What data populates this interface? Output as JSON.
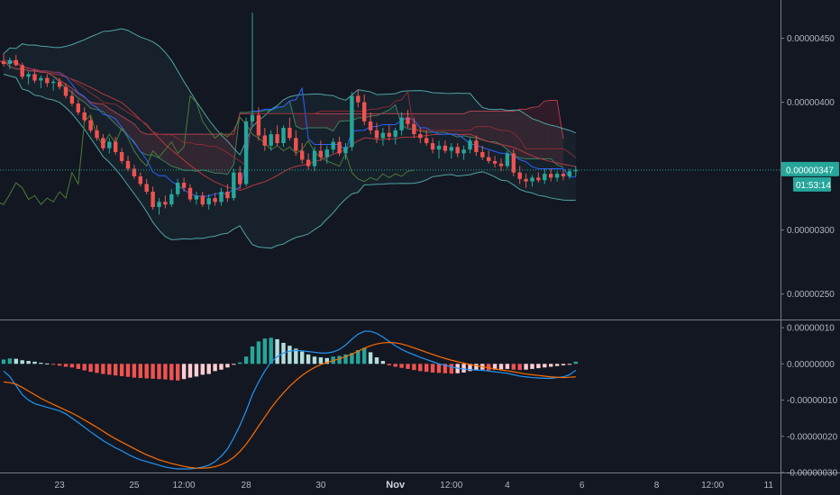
{
  "chart_data": {
    "type": "candlestick",
    "colors": {
      "up": "#26a69a",
      "down": "#ef5350",
      "bollinger": "#4fa3a5",
      "ma_blue": "#2962ff",
      "ma_red": "#b4373f",
      "lagging": "#4c7a35",
      "cloud_line": "#b23a48",
      "histogram_light_up": "#b2dfdb",
      "histogram_light_down": "#ffcdd2",
      "macd_line": "#2196f3",
      "signal_line": "#ff6d00"
    },
    "price_axis": {
      "ticks": [
        "0.00000450",
        "0.00000400",
        "0.00000300",
        "0.00000250"
      ],
      "tick_values": [
        4.5e-06,
        4e-06,
        3e-06,
        2.5e-06
      ],
      "ylim": [
        2.3e-06,
        4.8e-06
      ]
    },
    "indicator_axis": {
      "ticks": [
        "0.00000010",
        "0.00000000",
        "-0.00000010",
        "-0.00000020",
        "-0.00000030"
      ],
      "tick_values": [
        1e-07,
        0.0,
        -1e-07,
        -2e-07,
        -3e-07
      ],
      "ylim": [
        -3e-07,
        1.2e-07
      ]
    },
    "time_axis": {
      "labels": [
        {
          "text": "23",
          "bar": 9,
          "bold": false
        },
        {
          "text": "25",
          "bar": 21,
          "bold": false
        },
        {
          "text": "12:00",
          "bar": 29,
          "bold": false
        },
        {
          "text": "28",
          "bar": 39,
          "bold": false
        },
        {
          "text": "30",
          "bar": 51,
          "bold": false
        },
        {
          "text": "Nov",
          "bar": 63,
          "bold": true
        },
        {
          "text": "12:00",
          "bar": 72,
          "bold": false
        },
        {
          "text": "4",
          "bar": 81,
          "bold": false
        },
        {
          "text": "6",
          "bar": 93,
          "bold": false
        },
        {
          "text": "8",
          "bar": 105,
          "bold": false
        },
        {
          "text": "12:00",
          "bar": 114,
          "bold": false
        },
        {
          "text": "11",
          "bar": 123,
          "bold": false
        }
      ]
    },
    "current_price": {
      "value": 3.47e-06,
      "label": "0.00000347",
      "countdown": "01:53:14"
    },
    "candles": [
      [
        4.32,
        4.38,
        4.28,
        4.3
      ],
      [
        4.3,
        4.35,
        4.26,
        4.33
      ],
      [
        4.33,
        4.37,
        4.28,
        4.29
      ],
      [
        4.29,
        4.31,
        4.18,
        4.2
      ],
      [
        4.2,
        4.24,
        4.14,
        4.22
      ],
      [
        4.22,
        4.25,
        4.15,
        4.17
      ],
      [
        4.17,
        4.21,
        4.11,
        4.19
      ],
      [
        4.19,
        4.22,
        4.12,
        4.15
      ],
      [
        4.15,
        4.18,
        4.09,
        4.16
      ],
      [
        4.16,
        4.19,
        4.1,
        4.12
      ],
      [
        4.12,
        4.15,
        4.03,
        4.05
      ],
      [
        4.05,
        4.09,
        3.97,
        3.99
      ],
      [
        3.99,
        4.02,
        3.9,
        3.92
      ],
      [
        3.92,
        3.96,
        3.84,
        3.86
      ],
      [
        3.86,
        3.89,
        3.76,
        3.78
      ],
      [
        3.78,
        3.82,
        3.7,
        3.72
      ],
      [
        3.72,
        3.75,
        3.62,
        3.64
      ],
      [
        3.64,
        3.72,
        3.6,
        3.69
      ],
      [
        3.69,
        3.73,
        3.59,
        3.61
      ],
      [
        3.61,
        3.64,
        3.52,
        3.54
      ],
      [
        3.54,
        3.58,
        3.46,
        3.48
      ],
      [
        3.48,
        3.51,
        3.4,
        3.42
      ],
      [
        3.42,
        3.45,
        3.34,
        3.36
      ],
      [
        3.36,
        3.4,
        3.28,
        3.3
      ],
      [
        3.3,
        3.34,
        3.16,
        3.18
      ],
      [
        3.18,
        3.25,
        3.12,
        3.22
      ],
      [
        3.22,
        3.27,
        3.17,
        3.2
      ],
      [
        3.2,
        3.32,
        3.18,
        3.28
      ],
      [
        3.28,
        3.4,
        3.26,
        3.37
      ],
      [
        3.37,
        3.41,
        3.3,
        3.33
      ],
      [
        3.33,
        3.36,
        3.22,
        3.24
      ],
      [
        3.24,
        3.3,
        3.2,
        3.27
      ],
      [
        3.27,
        3.3,
        3.18,
        3.2
      ],
      [
        3.2,
        3.28,
        3.16,
        3.25
      ],
      [
        3.25,
        3.29,
        3.19,
        3.22
      ],
      [
        3.22,
        3.33,
        3.19,
        3.3
      ],
      [
        3.3,
        3.36,
        3.22,
        3.25
      ],
      [
        3.25,
        3.48,
        3.23,
        3.45
      ],
      [
        3.45,
        3.5,
        3.32,
        3.36
      ],
      [
        3.36,
        3.88,
        3.34,
        3.85
      ],
      [
        3.85,
        4.7,
        3.8,
        3.9
      ],
      [
        3.9,
        3.96,
        3.7,
        3.74
      ],
      [
        3.74,
        3.8,
        3.62,
        3.66
      ],
      [
        3.66,
        3.78,
        3.62,
        3.75
      ],
      [
        3.75,
        3.82,
        3.66,
        3.68
      ],
      [
        3.68,
        3.82,
        3.65,
        3.8
      ],
      [
        3.8,
        3.88,
        3.7,
        3.72
      ],
      [
        3.72,
        3.78,
        3.58,
        3.62
      ],
      [
        3.62,
        3.68,
        3.52,
        3.55
      ],
      [
        3.55,
        3.6,
        3.47,
        3.5
      ],
      [
        3.5,
        3.65,
        3.46,
        3.62
      ],
      [
        3.62,
        3.7,
        3.54,
        3.57
      ],
      [
        3.57,
        3.66,
        3.52,
        3.63
      ],
      [
        3.63,
        3.72,
        3.6,
        3.69
      ],
      [
        3.69,
        3.73,
        3.58,
        3.6
      ],
      [
        3.6,
        3.68,
        3.55,
        3.65
      ],
      [
        3.65,
        4.08,
        3.62,
        4.05
      ],
      [
        4.05,
        4.1,
        3.96,
        4.0
      ],
      [
        4.0,
        4.06,
        3.82,
        3.85
      ],
      [
        3.85,
        3.92,
        3.75,
        3.78
      ],
      [
        3.78,
        3.84,
        3.68,
        3.72
      ],
      [
        3.72,
        3.8,
        3.66,
        3.76
      ],
      [
        3.76,
        3.82,
        3.7,
        3.73
      ],
      [
        3.73,
        3.8,
        3.67,
        3.78
      ],
      [
        3.78,
        3.92,
        3.74,
        3.88
      ],
      [
        3.88,
        3.94,
        3.8,
        3.83
      ],
      [
        3.83,
        3.88,
        3.72,
        3.75
      ],
      [
        3.75,
        3.8,
        3.68,
        3.72
      ],
      [
        3.72,
        3.78,
        3.66,
        3.68
      ],
      [
        3.68,
        3.72,
        3.6,
        3.63
      ],
      [
        3.63,
        3.7,
        3.56,
        3.66
      ],
      [
        3.66,
        3.7,
        3.6,
        3.62
      ],
      [
        3.62,
        3.68,
        3.56,
        3.65
      ],
      [
        3.65,
        3.68,
        3.57,
        3.6
      ],
      [
        3.6,
        3.66,
        3.55,
        3.63
      ],
      [
        3.63,
        3.72,
        3.6,
        3.7
      ],
      [
        3.7,
        3.74,
        3.58,
        3.61
      ],
      [
        3.61,
        3.66,
        3.55,
        3.57
      ],
      [
        3.57,
        3.62,
        3.52,
        3.54
      ],
      [
        3.54,
        3.58,
        3.49,
        3.52
      ],
      [
        3.52,
        3.56,
        3.46,
        3.5
      ],
      [
        3.5,
        3.62,
        3.48,
        3.6
      ],
      [
        3.6,
        3.63,
        3.42,
        3.45
      ],
      [
        3.45,
        3.5,
        3.36,
        3.4
      ],
      [
        3.4,
        3.44,
        3.33,
        3.38
      ],
      [
        3.38,
        3.43,
        3.34,
        3.41
      ],
      [
        3.41,
        3.45,
        3.37,
        3.39
      ],
      [
        3.39,
        3.48,
        3.36,
        3.44
      ],
      [
        3.44,
        3.48,
        3.38,
        3.41
      ],
      [
        3.41,
        3.46,
        3.38,
        3.44
      ],
      [
        3.44,
        3.47,
        3.39,
        3.42
      ],
      [
        3.42,
        3.48,
        3.4,
        3.46
      ],
      [
        3.46,
        3.5,
        3.42,
        3.47
      ]
    ],
    "macd": {
      "histogram": [
        0.012,
        0.015,
        0.014,
        0.01,
        0.008,
        0.006,
        0.003,
        0.001,
        -0.002,
        -0.005,
        -0.008,
        -0.01,
        -0.014,
        -0.018,
        -0.022,
        -0.025,
        -0.028,
        -0.03,
        -0.032,
        -0.034,
        -0.036,
        -0.038,
        -0.039,
        -0.04,
        -0.041,
        -0.042,
        -0.043,
        -0.045,
        -0.046,
        -0.042,
        -0.038,
        -0.035,
        -0.03,
        -0.028,
        -0.02,
        -0.016,
        -0.01,
        -0.002,
        0.004,
        0.02,
        0.048,
        0.062,
        0.07,
        0.072,
        0.068,
        0.058,
        0.05,
        0.042,
        0.034,
        0.026,
        0.02,
        0.018,
        0.016,
        0.02,
        0.022,
        0.026,
        0.03,
        0.038,
        0.044,
        0.032,
        0.018,
        0.008,
        -0.004,
        -0.008,
        -0.011,
        -0.014,
        -0.017,
        -0.02,
        -0.022,
        -0.024,
        -0.025,
        -0.026,
        -0.027,
        -0.026,
        -0.024,
        -0.02,
        -0.018,
        -0.016,
        -0.018,
        -0.016,
        -0.015,
        -0.014,
        -0.016,
        -0.017,
        -0.016,
        -0.014,
        -0.012,
        -0.01,
        -0.008,
        -0.006,
        -0.004,
        -0.002,
        0.006
      ],
      "macd_line": [
        -0.02,
        -0.035,
        -0.06,
        -0.085,
        -0.1,
        -0.11,
        -0.115,
        -0.12,
        -0.125,
        -0.13,
        -0.138,
        -0.15,
        -0.162,
        -0.175,
        -0.188,
        -0.2,
        -0.212,
        -0.222,
        -0.232,
        -0.24,
        -0.25,
        -0.258,
        -0.265,
        -0.27,
        -0.275,
        -0.28,
        -0.285,
        -0.288,
        -0.29,
        -0.29,
        -0.29,
        -0.288,
        -0.285,
        -0.28,
        -0.27,
        -0.255,
        -0.235,
        -0.205,
        -0.17,
        -0.13,
        -0.085,
        -0.05,
        -0.02,
        0.005,
        0.02,
        0.03,
        0.035,
        0.037,
        0.036,
        0.034,
        0.032,
        0.03,
        0.03,
        0.033,
        0.04,
        0.052,
        0.068,
        0.082,
        0.09,
        0.09,
        0.084,
        0.074,
        0.062,
        0.05,
        0.04,
        0.032,
        0.025,
        0.018,
        0.012,
        0.006,
        0.0,
        -0.004,
        -0.008,
        -0.012,
        -0.014,
        -0.016,
        -0.017,
        -0.018,
        -0.02,
        -0.022,
        -0.024,
        -0.026,
        -0.03,
        -0.034,
        -0.036,
        -0.038,
        -0.039,
        -0.04,
        -0.04,
        -0.038,
        -0.036,
        -0.03,
        -0.018
      ],
      "signal_line": [
        -0.05,
        -0.052,
        -0.056,
        -0.065,
        -0.075,
        -0.085,
        -0.095,
        -0.104,
        -0.112,
        -0.12,
        -0.128,
        -0.136,
        -0.145,
        -0.155,
        -0.165,
        -0.175,
        -0.186,
        -0.197,
        -0.207,
        -0.216,
        -0.225,
        -0.234,
        -0.243,
        -0.251,
        -0.258,
        -0.265,
        -0.27,
        -0.275,
        -0.279,
        -0.283,
        -0.286,
        -0.288,
        -0.288,
        -0.287,
        -0.284,
        -0.278,
        -0.27,
        -0.258,
        -0.242,
        -0.222,
        -0.198,
        -0.172,
        -0.147,
        -0.122,
        -0.1,
        -0.08,
        -0.062,
        -0.046,
        -0.032,
        -0.02,
        -0.01,
        -0.002,
        0.004,
        0.009,
        0.014,
        0.02,
        0.027,
        0.035,
        0.043,
        0.05,
        0.055,
        0.058,
        0.059,
        0.058,
        0.055,
        0.05,
        0.044,
        0.038,
        0.032,
        0.026,
        0.02,
        0.015,
        0.01,
        0.006,
        0.002,
        -0.002,
        -0.005,
        -0.008,
        -0.011,
        -0.014,
        -0.017,
        -0.019,
        -0.022,
        -0.025,
        -0.028,
        -0.03,
        -0.032,
        -0.034,
        -0.036,
        -0.037,
        -0.038,
        -0.037,
        -0.036
      ]
    }
  }
}
